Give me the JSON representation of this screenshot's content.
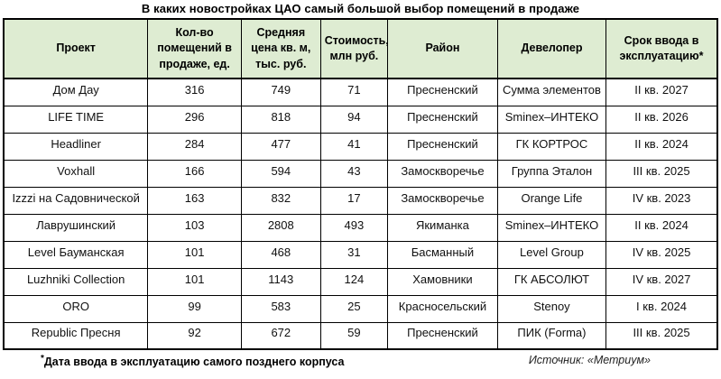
{
  "chart_data": {
    "type": "table",
    "title": "В каких новостройках ЦАО самый большой выбор помещений в продаже",
    "columns": [
      "Проект",
      "Кол-во помещений в продаже, ед.",
      "Средняя цена кв. м, тыс. руб.",
      "Стоимость, млн руб.",
      "Район",
      "Девелопер",
      "Срок ввода в эксплуатацию*"
    ],
    "rows": [
      [
        "Дом Дау",
        316,
        749,
        71,
        "Пресненский",
        "Сумма элементов",
        "II кв. 2027"
      ],
      [
        "LIFE TIME",
        296,
        818,
        94,
        "Пресненский",
        "Sminex–ИНТЕКО",
        "II кв. 2026"
      ],
      [
        "Headliner",
        284,
        477,
        41,
        "Пресненский",
        "ГК КОРТРОС",
        "II кв. 2024"
      ],
      [
        "Voxhall",
        166,
        594,
        43,
        "Замоскворечье",
        "Группа Эталон",
        "III кв. 2025"
      ],
      [
        "Izzzi на Садовнической",
        163,
        832,
        17,
        "Замоскворечье",
        "Orange Life",
        "IV кв. 2023"
      ],
      [
        "Лаврушинский",
        103,
        2808,
        493,
        "Якиманка",
        "Sminex–ИНТЕКО",
        "II кв. 2024"
      ],
      [
        "Level Бауманская",
        101,
        468,
        31,
        "Басманный",
        "Level Group",
        "IV кв. 2025"
      ],
      [
        "Luzhniki Collection",
        101,
        1143,
        124,
        "Хамовники",
        "ГК АБСОЛЮТ",
        "IV кв. 2027"
      ],
      [
        "ORO",
        99,
        583,
        25,
        "Красносельский",
        "Stenoy",
        "I кв. 2024"
      ],
      [
        "Republic Пресня",
        92,
        672,
        59,
        "Пресненский",
        "ПИК (Forma)",
        "III кв. 2025"
      ]
    ]
  },
  "footer": {
    "note_mark": "*",
    "note": "Дата ввода в эксплуатацию самого позднего корпуса",
    "source": "Источник: «Метриум»"
  },
  "colors": {
    "header_bg": "#deecd2",
    "border": "#000000",
    "text": "#111111"
  }
}
